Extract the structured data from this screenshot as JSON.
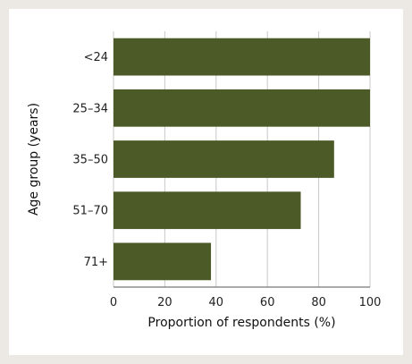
{
  "chart_data": {
    "type": "bar",
    "orientation": "horizontal",
    "categories": [
      "<24",
      "25–34",
      "35–50",
      "51–70",
      "71+"
    ],
    "values": [
      100,
      100,
      86,
      73,
      38
    ],
    "xlabel": "Proportion of respondents (%)",
    "ylabel": "Age group (years)",
    "xlim": [
      0,
      100
    ],
    "xticks": [
      0,
      20,
      40,
      60,
      80,
      100
    ],
    "grid": "vertical",
    "legend": "none",
    "bar_color": "#4b5a27",
    "grid_color": "#c8c8c8",
    "background": "#ffffff",
    "outer_background": "#ece9e4"
  }
}
